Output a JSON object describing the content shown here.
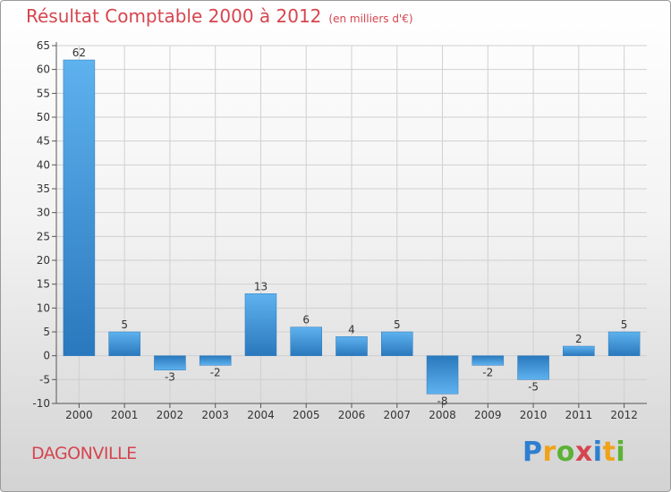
{
  "chart_data": {
    "type": "bar",
    "title": "Résultat Comptable 2000 à 2012",
    "subtitle": "(en milliers d'€)",
    "xlabel": "",
    "ylabel": "",
    "categories": [
      "2000",
      "2001",
      "2002",
      "2003",
      "2004",
      "2005",
      "2006",
      "2007",
      "2008",
      "2009",
      "2010",
      "2011",
      "2012"
    ],
    "values": [
      62,
      5,
      -3,
      -2,
      13,
      6,
      4,
      5,
      -8,
      -2,
      -5,
      2,
      5
    ],
    "ylim": [
      -10,
      65
    ],
    "yticks": [
      -10,
      -5,
      0,
      5,
      10,
      15,
      20,
      25,
      30,
      35,
      40,
      45,
      50,
      55,
      60,
      65
    ],
    "grid": true,
    "bar_color": "#3a8fd6"
  },
  "commune": "DAGONVILLE",
  "logo": {
    "p": "P",
    "r": "r",
    "o": "o",
    "x": "x",
    "i": "i",
    "t": "t",
    "i2": "i"
  },
  "colors": {
    "title": "#d6454f",
    "grid": "#d0d0d0",
    "axis": "#555555"
  }
}
